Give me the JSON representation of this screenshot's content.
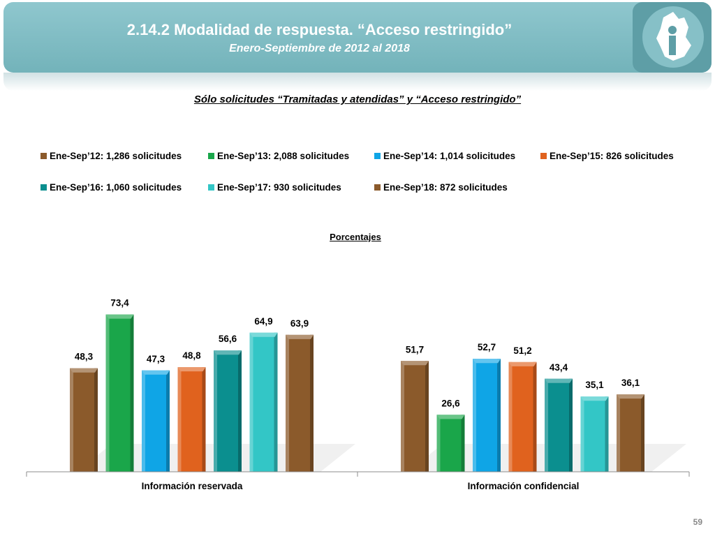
{
  "header": {
    "title": "2.14.2 Modalidad de respuesta. “Acceso restringido”",
    "subtitle": "Enero-Septiembre de 2012 al 2018"
  },
  "chart_heading": "Sólo solicitudes “Tramitadas y atendidas” y “Acceso restringido”",
  "page_number": "59",
  "chart_data": {
    "type": "bar",
    "title": "Porcentajes",
    "categories": [
      "Información reservada",
      "Información confidencial"
    ],
    "series": [
      {
        "name": "Ene-Sep’12: 1,286 solicitudes",
        "values": [
          48.3,
          51.7
        ],
        "labels": [
          "48,3",
          "51,7"
        ],
        "color": "#8b5a2b"
      },
      {
        "name": "Ene-Sep’13: 2,088 solicitudes",
        "values": [
          73.4,
          26.6
        ],
        "labels": [
          "73,4",
          "26,6"
        ],
        "color": "#1aa64a"
      },
      {
        "name": "Ene-Sep’14: 1,014 solicitudes",
        "values": [
          47.3,
          52.7
        ],
        "labels": [
          "47,3",
          "52,7"
        ],
        "color": "#0fa5e6"
      },
      {
        "name": "Ene-Sep’15: 826 solicitudes",
        "values": [
          48.8,
          51.2
        ],
        "labels": [
          "48,8",
          "51,2"
        ],
        "color": "#e0621e"
      },
      {
        "name": "Ene-Sep’16: 1,060 solicitudes",
        "values": [
          56.6,
          43.4
        ],
        "labels": [
          "56,6",
          "43,4"
        ],
        "color": "#0b8f8f"
      },
      {
        "name": "Ene-Sep’17: 930 solicitudes",
        "values": [
          64.9,
          35.1
        ],
        "labels": [
          "64,9",
          "35,1"
        ],
        "color": "#33c6c6"
      },
      {
        "name": "Ene-Sep’18: 872 solicitudes",
        "values": [
          63.9,
          36.1
        ],
        "labels": [
          "63,9",
          "36,1"
        ],
        "color": "#8b5a2b"
      }
    ],
    "ylim": [
      0,
      100
    ],
    "legend_position": "top"
  }
}
